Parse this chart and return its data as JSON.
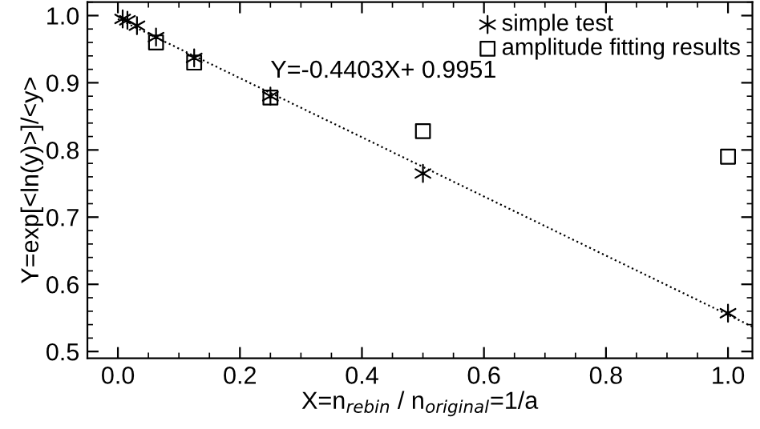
{
  "chart_data": {
    "type": "scatter",
    "xlabel": "X=n$_{rebin}$ / n$_{original}$=1/a",
    "ylabel": "Y=exp[<ln(y)>]/<y>",
    "xlim": [
      -0.05,
      1.04
    ],
    "ylim": [
      0.49,
      1.02
    ],
    "xticks": [
      {
        "value": 0,
        "label": "0.0"
      },
      0.2,
      0.4,
      0.6,
      0.8,
      {
        "value": 1,
        "label": "1.0"
      }
    ],
    "yticks": [
      0.5,
      0.6,
      0.7,
      0.8,
      0.9,
      {
        "value": 1,
        "label": "1.0"
      }
    ],
    "grid": false,
    "legend": "top right",
    "series": [
      {
        "name": "simple test",
        "color": "#000000",
        "marker": "cross",
        "x": [
          0.0078,
          0.0156,
          0.03125,
          0.0625,
          0.125,
          0.25,
          0.5,
          1.0
        ],
        "values": [
          0.995,
          0.993,
          0.985,
          0.968,
          0.937,
          0.88,
          0.765,
          0.557
        ]
      },
      {
        "name": "amplitude fitting results",
        "color": "#000000",
        "marker": "square",
        "x": [
          0.0625,
          0.125,
          0.25,
          0.5,
          1.0
        ],
        "values": [
          0.96,
          0.93,
          0.878,
          0.828,
          0.79
        ]
      },
      {
        "type": "line",
        "color": "#000000",
        "line_style": "dotted",
        "marker": "none",
        "x": [
          0,
          1.04
        ],
        "values": [
          0.995,
          0.537
        ]
      }
    ],
    "annotations": [
      {
        "text": "Y=-0.4403X+ 0.9951",
        "x": 0.25,
        "y": 0.9
      }
    ]
  }
}
